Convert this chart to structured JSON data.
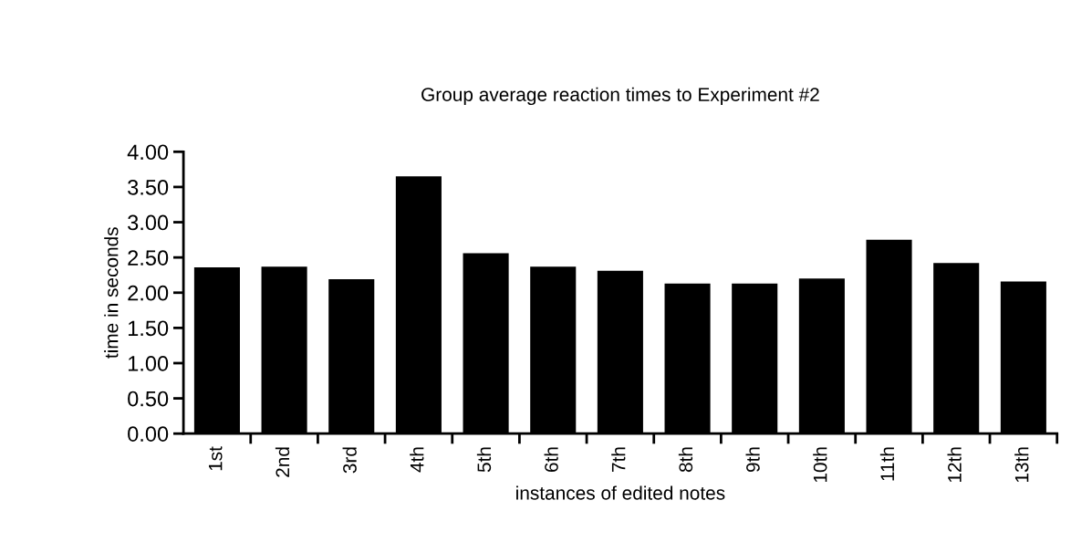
{
  "chart_data": {
    "type": "bar",
    "title": "Group average reaction times to Experiment #2",
    "xlabel": "instances of edited notes",
    "ylabel": "time in seconds",
    "categories": [
      "1st",
      "2nd",
      "3rd",
      "4th",
      "5th",
      "6th",
      "7th",
      "8th",
      "9th",
      "10th",
      "11th",
      "12th",
      "13th"
    ],
    "values": [
      2.36,
      2.37,
      2.19,
      3.65,
      2.56,
      2.37,
      2.31,
      2.13,
      2.13,
      2.2,
      2.75,
      2.42,
      2.16
    ],
    "color": "#000000",
    "ylim": [
      0,
      4
    ],
    "yticks": [
      {
        "value": 0,
        "label": "0.00"
      },
      {
        "value": 0.5,
        "label": "0.50"
      },
      {
        "value": 1,
        "label": "1.00"
      },
      {
        "value": 1.5,
        "label": "1.50"
      },
      {
        "value": 2,
        "label": "2.00"
      },
      {
        "value": 2.5,
        "label": "2.50"
      },
      {
        "value": 3,
        "label": "3.00"
      },
      {
        "value": 3.5,
        "label": "3.50"
      },
      {
        "value": 4,
        "label": "4.00"
      }
    ],
    "grid": false
  }
}
